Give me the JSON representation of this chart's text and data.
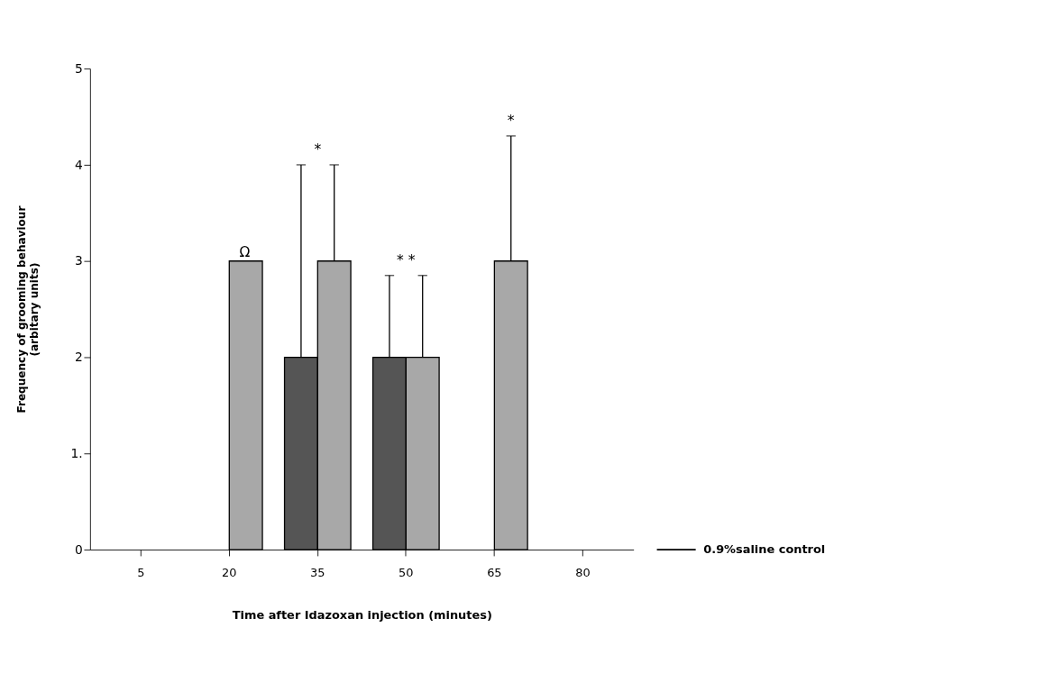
{
  "chart_data": {
    "type": "bar",
    "xlabel": "Time after Idazoxan injection (minutes)",
    "ylabel": "Frequency of grooming behaviour\n(arbitary units)",
    "categories": [
      "5",
      "20",
      "35",
      "50",
      "65",
      "80"
    ],
    "series": [
      {
        "color": "#555555",
        "values": [
          null,
          null,
          2,
          2,
          null,
          null
        ],
        "errors": [
          null,
          null,
          2,
          0.85,
          null,
          null
        ]
      },
      {
        "color": "#a8a8a8",
        "values": [
          null,
          3,
          3,
          2,
          3,
          null
        ],
        "errors": [
          null,
          null,
          1,
          0.85,
          1.3,
          null
        ]
      }
    ],
    "ylim": [
      0,
      5
    ],
    "yticks": [
      0,
      {
        "value": 1,
        "label": "1."
      },
      2,
      3,
      4,
      5
    ],
    "grid": false,
    "annotations": [
      {
        "text": "Ω",
        "x": "20",
        "y": 3
      },
      "*",
      "*   *",
      "*",
      "0.9%saline  control"
    ]
  }
}
